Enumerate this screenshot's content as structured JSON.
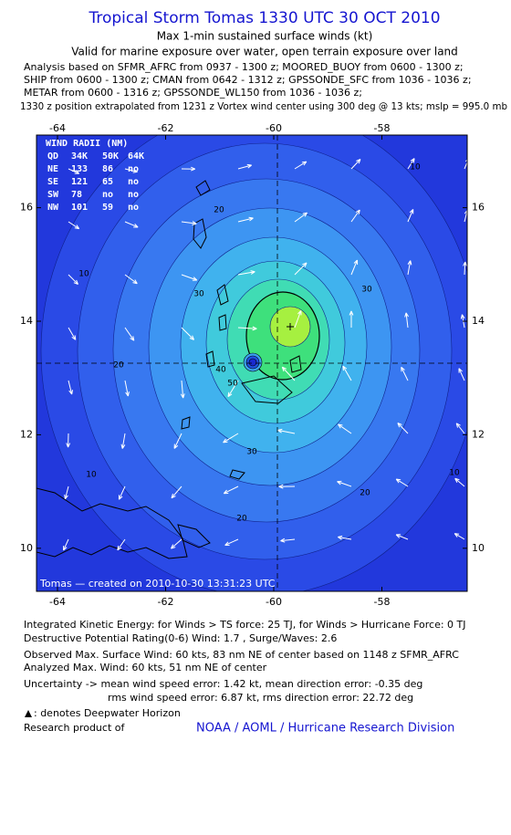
{
  "header": {
    "title": "Tropical Storm Tomas 1330 UTC 30 OCT 2010",
    "subtitle": "Max 1-min sustained surface winds (kt)",
    "validity": "Valid for marine exposure over water, open terrain exposure over land",
    "analysis_lines": [
      "Analysis based on SFMR_AFRC from 0937 - 1300 z; MOORED_BUOY from 0600 - 1300 z;",
      "SHIP from 0600 - 1300 z; CMAN from 0642 - 1312 z; GPSSONDE_SFC from 1036 - 1036 z;",
      "METAR from 0600 - 1316 z; GPSSONDE_WL150 from 1036 - 1036 z;"
    ],
    "position_note": "1330 z position extrapolated from 1231 z Vortex wind center using 300 deg @ 13 kts; mslp = 995.0 mb"
  },
  "map": {
    "lon_ticks": [
      -64,
      -62,
      -60,
      -58
    ],
    "lat_ticks": [
      10,
      12,
      14,
      16
    ],
    "wind_radii": {
      "title": "WIND RADII (NM)",
      "header": [
        "QD",
        "34K",
        "50K",
        "64K"
      ],
      "rows": [
        [
          "NE",
          "133",
          "86",
          "no"
        ],
        [
          "SE",
          "121",
          "65",
          "no"
        ],
        [
          "SW",
          "78",
          "no",
          "no"
        ],
        [
          "NW",
          "101",
          "59",
          "no"
        ]
      ]
    },
    "contour_labels": [
      10,
      10,
      10,
      10,
      20,
      20,
      20,
      20,
      30,
      30,
      30,
      40,
      50
    ],
    "credit": "Tomas — created on 2010-10-30 13:31:23 UTC"
  },
  "footer": {
    "ike": "Integrated Kinetic Energy:  for Winds > TS force: 25 TJ,  for Winds > Hurricane Force: 0 TJ",
    "dpr": "Destructive Potential Rating(0-6)   Wind: 1.7 , Surge/Waves: 2.6",
    "observed": "Observed Max. Surface Wind: 60 kts, 83 nm NE of center based on 1148 z SFMR_AFRC",
    "analyzed": "Analyzed Max. Wind: 60 kts, 51 nm NE of center",
    "uncertainty_1": "Uncertainty -> mean wind speed error: 1.42 kt,   mean direction error:  -0.35 deg",
    "uncertainty_2": "rms wind speed error: 6.87 kt,   rms direction error: 22.72 deg",
    "deepwater": ": denotes Deepwater Horizon",
    "research": "Research product of",
    "org": "NOAA / AOML / Hurricane Research Division"
  }
}
